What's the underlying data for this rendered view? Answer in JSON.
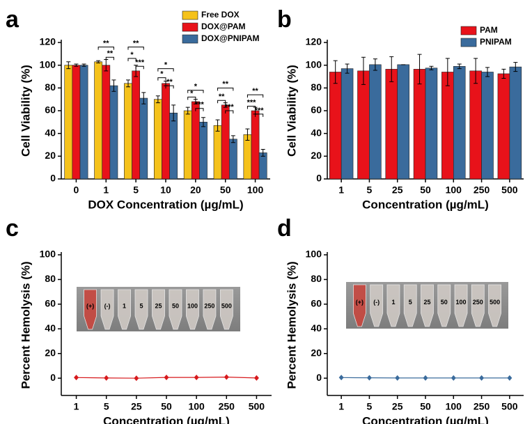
{
  "chart_data": [
    {
      "type": "bar",
      "panel_label": "a",
      "xlabel": "DOX Concentration (µg/mL)",
      "ylabel": "Cell Viability (%)",
      "categories": [
        "0",
        "1",
        "5",
        "10",
        "20",
        "50",
        "100"
      ],
      "series": [
        {
          "name": "Free DOX",
          "color": "#f5c21b",
          "values": [
            100,
            103,
            84,
            70,
            60,
            47,
            39
          ],
          "errors": [
            3,
            1,
            3,
            3,
            3,
            5,
            5
          ]
        },
        {
          "name": "DOX@PAM",
          "color": "#e8121a",
          "values": [
            100,
            100,
            95,
            84,
            68,
            65,
            60
          ],
          "errors": [
            1,
            5,
            5,
            2,
            2,
            2,
            3
          ]
        },
        {
          "name": "DOX@PNIPAM",
          "color": "#3a6b9c",
          "values": [
            100,
            82,
            71,
            58,
            50,
            35,
            23
          ],
          "errors": [
            1,
            5,
            5,
            7,
            4,
            3,
            3
          ]
        }
      ],
      "annotations": [
        "**",
        "**",
        "**",
        "*",
        "***",
        "*",
        "*",
        "**",
        "*",
        "*",
        "***",
        "**",
        "**",
        "***",
        "**",
        "***",
        "***"
      ],
      "ylim": [
        0,
        120
      ],
      "yticks": [
        0,
        20,
        40,
        60,
        80,
        100,
        120
      ],
      "legend": "top-right"
    },
    {
      "type": "bar",
      "panel_label": "b",
      "xlabel": "Concentration (µg/mL)",
      "ylabel": "Cell Viability (%)",
      "categories": [
        "1",
        "5",
        "25",
        "50",
        "100",
        "250",
        "500"
      ],
      "series": [
        {
          "name": "PAM",
          "color": "#e8121a",
          "values": [
            94,
            95,
            96.5,
            96.5,
            94,
            95,
            92.5
          ],
          "errors": [
            10,
            12,
            11,
            13,
            12,
            11,
            4
          ]
        },
        {
          "name": "PNIPAM",
          "color": "#3a6b9c",
          "values": [
            97,
            100.5,
            100.5,
            97.5,
            99,
            94,
            98.5
          ],
          "errors": [
            4,
            5,
            0,
            1.5,
            2,
            4,
            4
          ]
        }
      ],
      "ylim": [
        0,
        120
      ],
      "yticks": [
        0,
        20,
        40,
        60,
        80,
        100,
        120
      ],
      "legend": "top-right"
    },
    {
      "type": "line",
      "panel_label": "c",
      "xlabel": "Concentration (µg/mL)",
      "ylabel": "Percent Hemolysis (%)",
      "categories": [
        "1",
        "5",
        "25",
        "50",
        "100",
        "250",
        "500"
      ],
      "series": [
        {
          "color": "#d7191c",
          "values": [
            0.5,
            0.2,
            0.0,
            0.6,
            0.6,
            0.9,
            0.2
          ]
        }
      ],
      "inset_labels": [
        "(+)",
        "(-)",
        "1",
        "5",
        "25",
        "50",
        "100",
        "250",
        "500"
      ],
      "ylim": [
        -14,
        100
      ],
      "yticks": [
        0,
        20,
        40,
        60,
        80,
        100
      ]
    },
    {
      "type": "line",
      "panel_label": "d",
      "xlabel": "Concentration (µg/mL)",
      "ylabel": "Percent Hemolysis (%)",
      "categories": [
        "1",
        "5",
        "25",
        "50",
        "100",
        "250",
        "500"
      ],
      "series": [
        {
          "color": "#3a6b9c",
          "values": [
            0.5,
            0.3,
            0.2,
            0.2,
            0.2,
            0.2,
            0.2
          ]
        }
      ],
      "inset_labels": [
        "(+)",
        "(-)",
        "1",
        "5",
        "25",
        "50",
        "100",
        "250",
        "500"
      ],
      "ylim": [
        -14,
        100
      ],
      "yticks": [
        0,
        20,
        40,
        60,
        80,
        100
      ]
    }
  ]
}
